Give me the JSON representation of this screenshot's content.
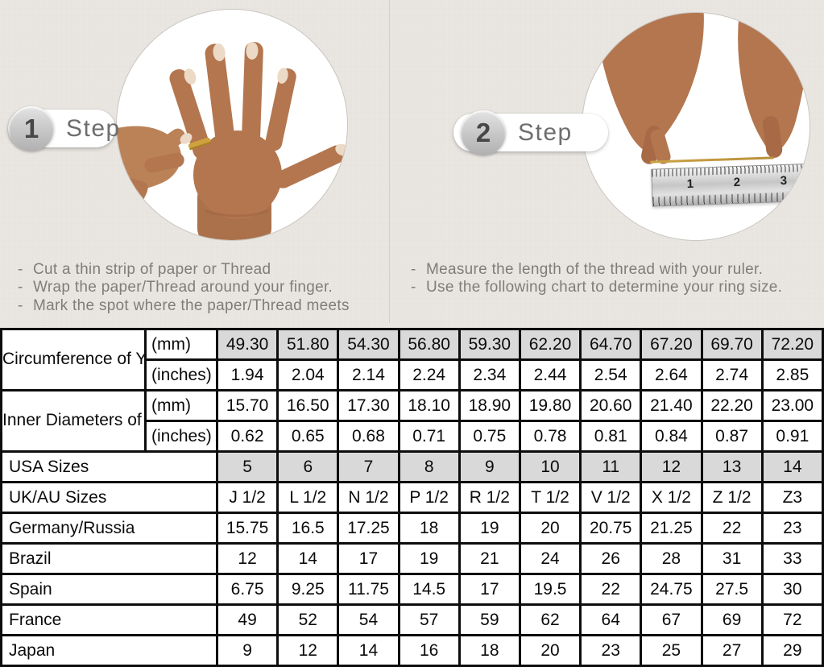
{
  "bullet_char": "-",
  "steps": [
    {
      "number": "1",
      "label": "Step",
      "instructions": [
        "Cut a thin strip of paper or Thread",
        "Wrap the paper/Thread around your finger.",
        "Mark the spot where the paper/Thread meets"
      ]
    },
    {
      "number": "2",
      "label": "Step",
      "instructions": [
        "Measure the length of the thread with your ruler.",
        "Use the following chart to determine your ring size."
      ]
    }
  ],
  "photos": {
    "step1": {
      "icon": "hand-with-ring-photo"
    },
    "step2": {
      "icon": "measuring-thread-with-ruler-photo",
      "ruler_numbers": [
        "1",
        "2",
        "3"
      ]
    }
  },
  "table": {
    "header_groups": [
      {
        "label": "Circumference of Your Finger",
        "rows": [
          {
            "unit": "(mm)",
            "shaded": true,
            "values": [
              "49.30",
              "51.80",
              "54.30",
              "56.80",
              "59.30",
              "62.20",
              "64.70",
              "67.20",
              "69.70",
              "72.20"
            ]
          },
          {
            "unit": "(inches)",
            "shaded": false,
            "values": [
              "1.94",
              "2.04",
              "2.14",
              "2.24",
              "2.34",
              "2.44",
              "2.54",
              "2.64",
              "2.74",
              "2.85"
            ]
          }
        ]
      },
      {
        "label": "Inner Diameters of Rings",
        "rows": [
          {
            "unit": "(mm)",
            "shaded": false,
            "values": [
              "15.70",
              "16.50",
              "17.30",
              "18.10",
              "18.90",
              "19.80",
              "20.60",
              "21.40",
              "22.20",
              "23.00"
            ]
          },
          {
            "unit": "(inches)",
            "shaded": false,
            "values": [
              "0.62",
              "0.65",
              "0.68",
              "0.71",
              "0.75",
              "0.78",
              "0.81",
              "0.84",
              "0.87",
              "0.91"
            ]
          }
        ]
      }
    ],
    "size_rows": [
      {
        "label": "USA Sizes",
        "shaded": true,
        "values": [
          "5",
          "6",
          "7",
          "8",
          "9",
          "10",
          "11",
          "12",
          "13",
          "14"
        ]
      },
      {
        "label": "UK/AU Sizes",
        "shaded": false,
        "values": [
          "J 1/2",
          "L 1/2",
          "N 1/2",
          "P 1/2",
          "R 1/2",
          "T 1/2",
          "V 1/2",
          "X 1/2",
          "Z 1/2",
          "Z3"
        ]
      },
      {
        "label": "Germany/Russia",
        "shaded": false,
        "values": [
          "15.75",
          "16.5",
          "17.25",
          "18",
          "19",
          "20",
          "20.75",
          "21.25",
          "22",
          "23"
        ]
      },
      {
        "label": "Brazil",
        "shaded": false,
        "values": [
          "12",
          "14",
          "17",
          "19",
          "21",
          "24",
          "26",
          "28",
          "31",
          "33"
        ]
      },
      {
        "label": "Spain",
        "shaded": false,
        "values": [
          "6.75",
          "9.25",
          "11.75",
          "14.5",
          "17",
          "19.5",
          "22",
          "24.75",
          "27.5",
          "30"
        ]
      },
      {
        "label": "France",
        "shaded": false,
        "values": [
          "49",
          "52",
          "54",
          "57",
          "59",
          "62",
          "64",
          "67",
          "69",
          "72"
        ]
      },
      {
        "label": "Japan",
        "shaded": false,
        "values": [
          "9",
          "12",
          "14",
          "16",
          "18",
          "20",
          "23",
          "25",
          "27",
          "29"
        ]
      }
    ]
  },
  "colors": {
    "page_bg": "#EAE7E2",
    "divider": "#D3D0CB",
    "circle_bg": "#FFFFFF",
    "circle_border": "#C9C6C1",
    "table_border": "#0D0D0D",
    "table_shaded_cell": "#D9D9D9",
    "table_text": "#0B0B0B",
    "instruction_text": "#7F7D79",
    "step_label_text": "#6E6E6E",
    "step_number_text": "#474747",
    "skin_tone": "#B3764F",
    "ring_gold": "#CFA23D",
    "thread_gold": "#C59A3F",
    "ruler_silver": "#C6C6C6"
  }
}
